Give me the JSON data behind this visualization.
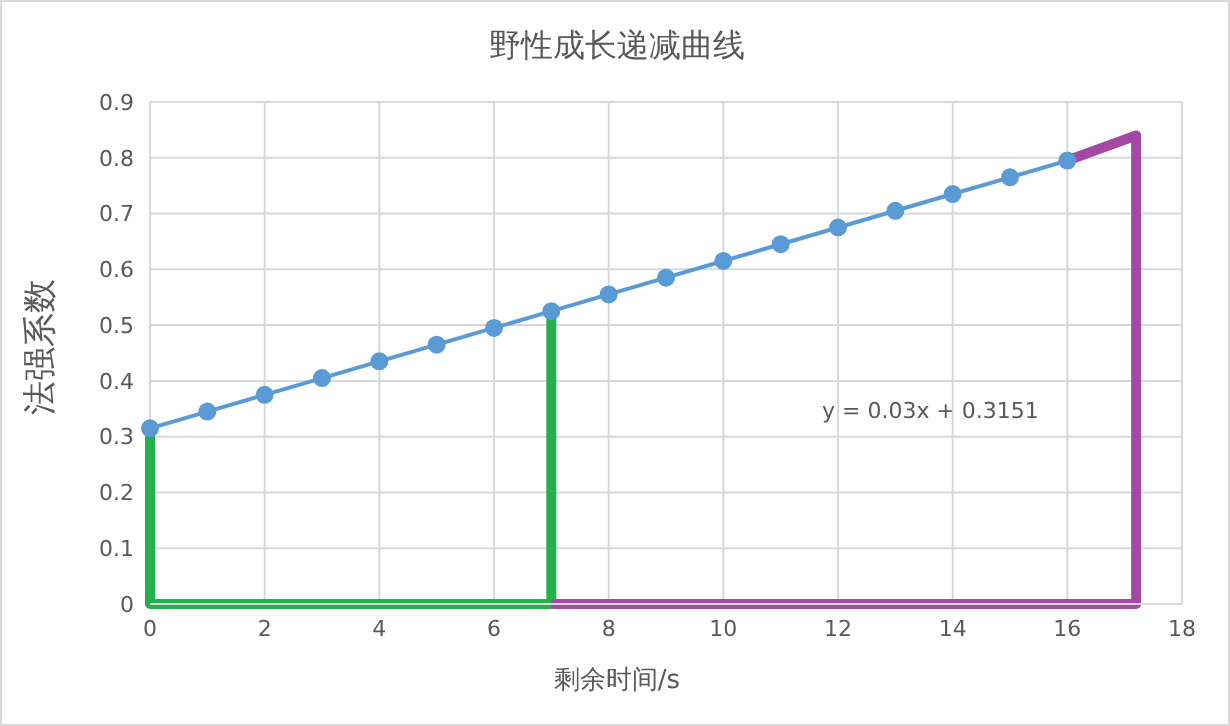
{
  "chart_data": {
    "type": "line",
    "title": "野性成长递减曲线",
    "xlabel": "剩余时间/s",
    "ylabel": "法强系数",
    "xlim": [
      0,
      18
    ],
    "xticks": [
      0,
      2,
      4,
      6,
      8,
      10,
      12,
      14,
      16,
      18
    ],
    "ylim": [
      0,
      0.9
    ],
    "yticks": [
      0,
      0.1,
      0.2,
      0.3,
      0.4,
      0.5,
      0.6,
      0.7,
      0.8,
      0.9
    ],
    "grid": true,
    "legend": false,
    "annotations": [
      "y = 0.03x + 0.3151"
    ],
    "series": [
      {
        "color": "#5b9bd5",
        "marker": "circle",
        "x": [
          0,
          1,
          2,
          3,
          4,
          5,
          6,
          7,
          8,
          9,
          10,
          11,
          12,
          13,
          14,
          15,
          16
        ],
        "values": [
          0.315,
          0.345,
          0.375,
          0.405,
          0.435,
          0.465,
          0.495,
          0.525,
          0.555,
          0.585,
          0.615,
          0.645,
          0.675,
          0.705,
          0.735,
          0.765,
          0.795
        ]
      },
      {
        "color": "#22b14c",
        "marker": "none",
        "x": [
          0,
          0,
          7,
          7
        ],
        "values": [
          0.315,
          0,
          0,
          0.525
        ]
      },
      {
        "color": "#a349a4",
        "marker": "none",
        "x": [
          7,
          17.2,
          17.2,
          16
        ],
        "values": [
          0,
          0,
          0.84,
          0.795
        ]
      }
    ]
  }
}
